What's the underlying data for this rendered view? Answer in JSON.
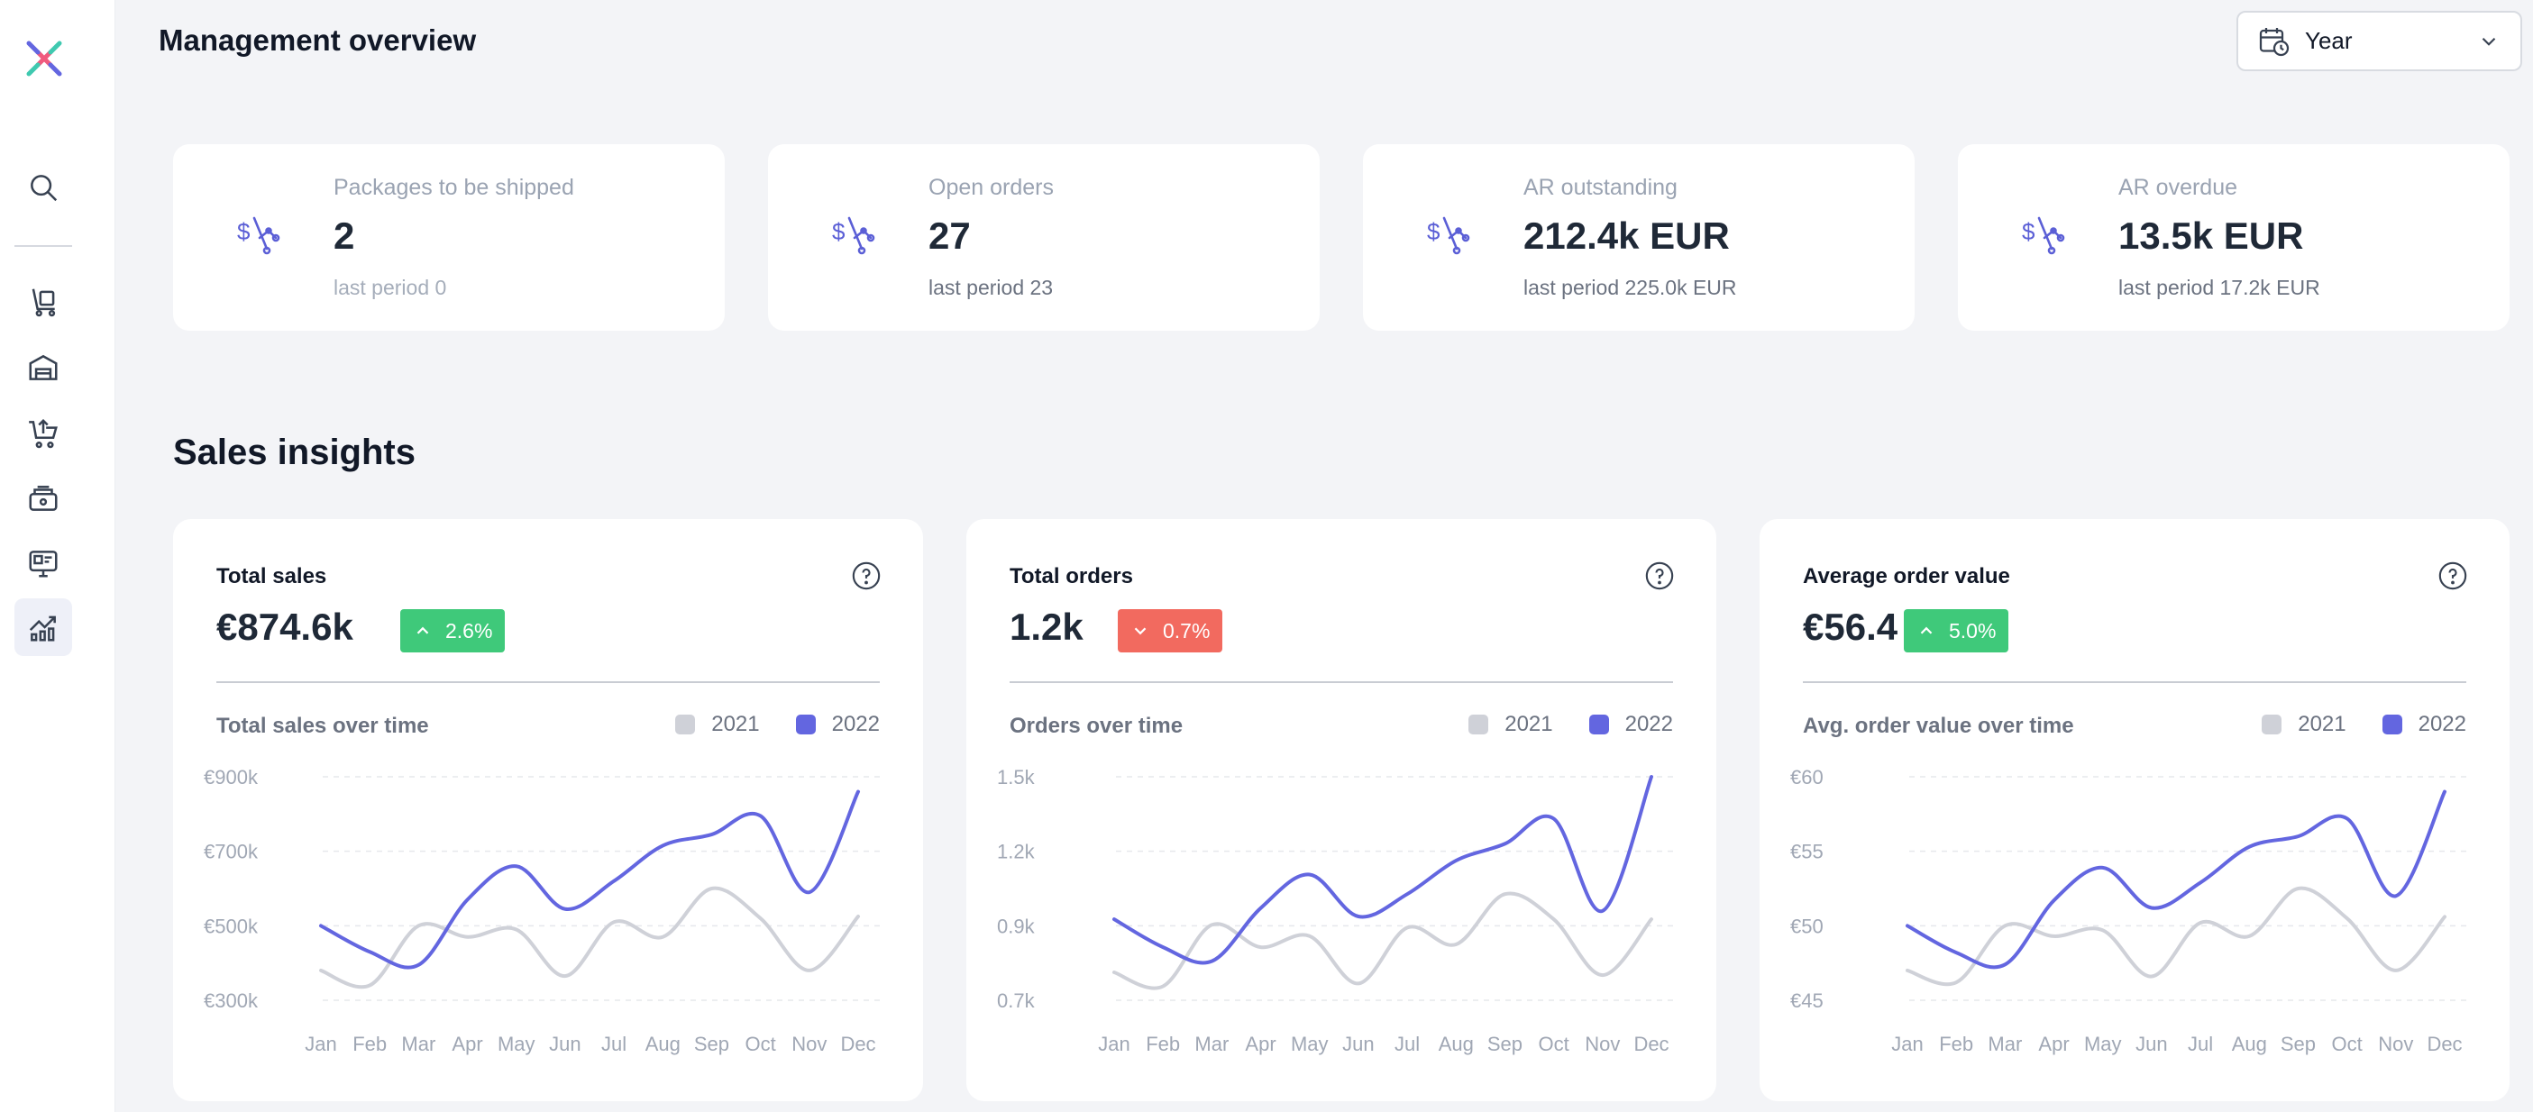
{
  "header": {
    "title": "Management overview",
    "period": {
      "value": "Year"
    }
  },
  "sidebar": {
    "items": [
      {
        "name": "search-icon"
      },
      {
        "name": "trolley-icon"
      },
      {
        "name": "warehouse-icon"
      },
      {
        "name": "cart-upload-icon"
      },
      {
        "name": "cash-register-icon"
      },
      {
        "name": "monitor-icon"
      },
      {
        "name": "analytics-icon",
        "active": true
      }
    ]
  },
  "kpis": [
    {
      "title": "Packages to be shipped",
      "value": "2",
      "previous": "last period 0"
    },
    {
      "title": "Open orders",
      "value": "27",
      "previous": "last period 23"
    },
    {
      "title": "AR outstanding",
      "value": "212.4k EUR",
      "previous": "last period 225.0k EUR"
    },
    {
      "title": "AR overdue",
      "value": "13.5k EUR",
      "previous": "last period 17.2k EUR"
    }
  ],
  "sales_insights": {
    "title": "Sales insights",
    "legend": [
      "2021",
      "2022"
    ],
    "colors": {
      "series_2021": "#cfd1d8",
      "series_2022": "#6366e0",
      "up": "#3fc97a",
      "down": "#f26a5f"
    }
  },
  "chart_data": [
    {
      "type": "line",
      "title": "Total sales",
      "total": "€874.6k",
      "change": "2.6%",
      "trend": "up",
      "subtitle": "Total sales over time",
      "x": [
        "Jan",
        "Feb",
        "Mar",
        "Apr",
        "May",
        "Jun",
        "Jul",
        "Aug",
        "Sep",
        "Oct",
        "Nov",
        "Dec"
      ],
      "y_ticks": [
        "€900k",
        "€700k",
        "€500k",
        "€300k"
      ],
      "ylim": [
        300,
        900
      ],
      "series": [
        {
          "name": "2021",
          "values": [
            380,
            340,
            500,
            470,
            490,
            365,
            510,
            470,
            600,
            520,
            380,
            525
          ]
        },
        {
          "name": "2022",
          "values": [
            500,
            430,
            395,
            570,
            660,
            545,
            620,
            715,
            745,
            795,
            590,
            860
          ]
        }
      ]
    },
    {
      "type": "line",
      "title": "Total orders",
      "total": "1.2k",
      "change": "0.7%",
      "trend": "down",
      "subtitle": "Orders over time",
      "x": [
        "Jan",
        "Feb",
        "Mar",
        "Apr",
        "May",
        "Jun",
        "Jul",
        "Aug",
        "Sep",
        "Oct",
        "Nov",
        "Dec"
      ],
      "y_ticks": [
        "1.5k",
        "1.2k",
        "0.9k",
        "0.7k"
      ],
      "ylim": [
        0.7,
        1.5
      ],
      "series": [
        {
          "name": "2021",
          "values": [
            0.8,
            0.75,
            0.97,
            0.89,
            0.93,
            0.76,
            0.96,
            0.9,
            1.08,
            0.99,
            0.79,
            0.99
          ]
        },
        {
          "name": "2022",
          "values": [
            0.99,
            0.89,
            0.84,
            1.03,
            1.15,
            1.0,
            1.08,
            1.2,
            1.26,
            1.35,
            1.02,
            1.5
          ]
        }
      ]
    },
    {
      "type": "line",
      "title": "Average order value",
      "total": "€56.4",
      "change": "5.0%",
      "trend": "up",
      "subtitle": "Avg. order value over time",
      "x": [
        "Jan",
        "Feb",
        "Mar",
        "Apr",
        "May",
        "Jun",
        "Jul",
        "Aug",
        "Sep",
        "Oct",
        "Nov",
        "Dec"
      ],
      "y_ticks": [
        "€60",
        "€55",
        "€50",
        "€45"
      ],
      "ylim": [
        45,
        60
      ],
      "series": [
        {
          "name": "2021",
          "values": [
            47.0,
            46.2,
            50.0,
            49.3,
            49.7,
            46.6,
            50.2,
            49.3,
            52.5,
            50.5,
            47.0,
            50.6
          ]
        },
        {
          "name": "2022",
          "values": [
            50.0,
            48.2,
            47.4,
            51.7,
            53.9,
            51.2,
            52.9,
            55.3,
            56.0,
            57.2,
            52.0,
            59.0
          ]
        }
      ]
    }
  ]
}
